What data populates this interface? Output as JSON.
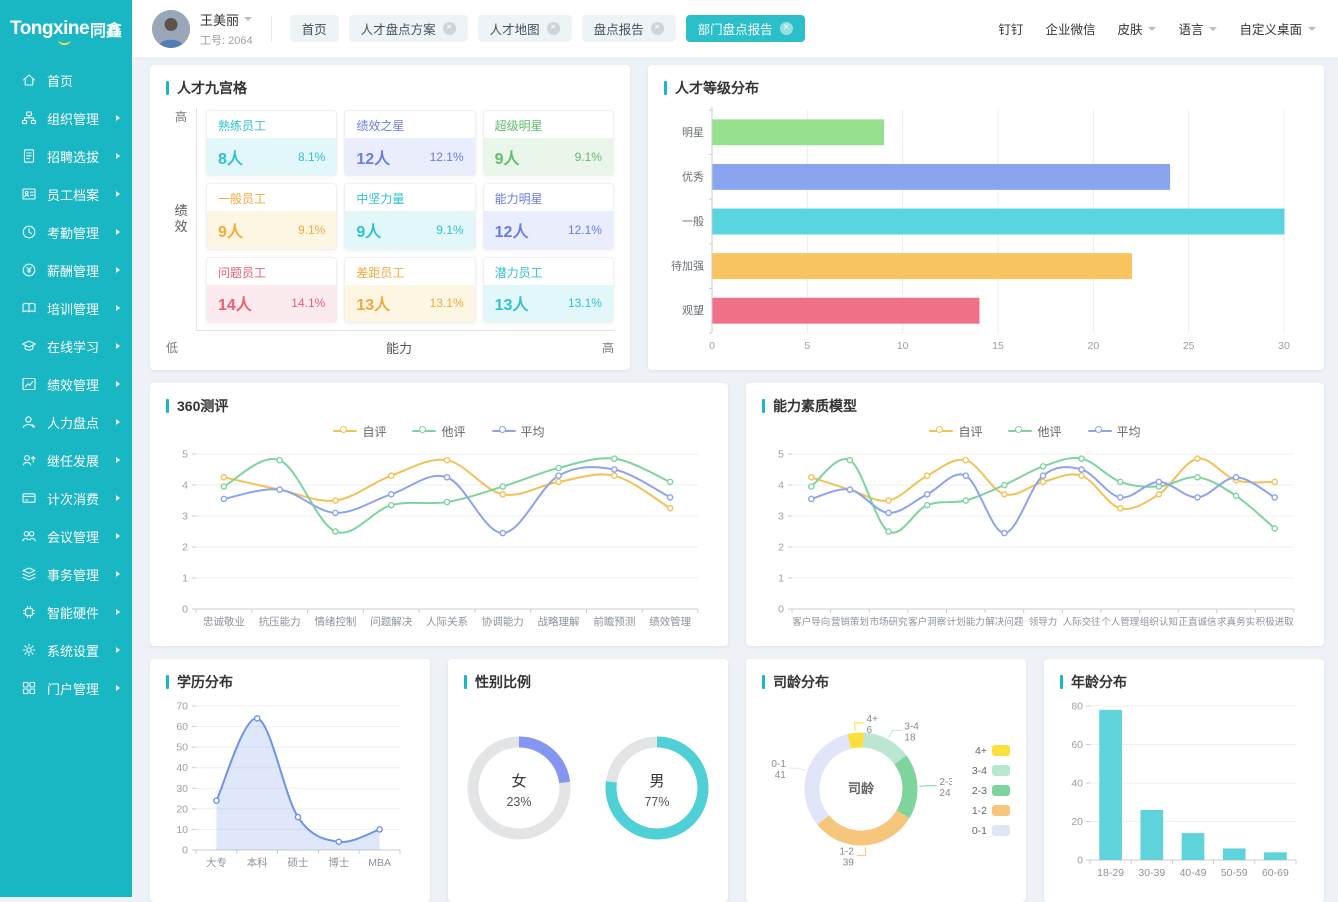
{
  "brand": {
    "logo_primary": "Tongxine",
    "logo_secondary": "同鑫",
    "color": "#19b6c4"
  },
  "sidebar": {
    "items": [
      {
        "label": "首页",
        "icon": "home-icon",
        "has_arrow": false
      },
      {
        "label": "组织管理",
        "icon": "org-icon",
        "has_arrow": true
      },
      {
        "label": "招聘选拔",
        "icon": "recruit-icon",
        "has_arrow": true
      },
      {
        "label": "员工档案",
        "icon": "archive-icon",
        "has_arrow": true
      },
      {
        "label": "考勤管理",
        "icon": "attendance-icon",
        "has_arrow": true
      },
      {
        "label": "薪酬管理",
        "icon": "salary-icon",
        "has_arrow": true
      },
      {
        "label": "培训管理",
        "icon": "training-icon",
        "has_arrow": true
      },
      {
        "label": "在线学习",
        "icon": "study-icon",
        "has_arrow": true
      },
      {
        "label": "绩效管理",
        "icon": "performance-icon",
        "has_arrow": true
      },
      {
        "label": "人力盘点",
        "icon": "review-icon",
        "has_arrow": true
      },
      {
        "label": "继任发展",
        "icon": "succession-icon",
        "has_arrow": true
      },
      {
        "label": "计次消费",
        "icon": "consume-icon",
        "has_arrow": true
      },
      {
        "label": "会议管理",
        "icon": "meeting-icon",
        "has_arrow": true
      },
      {
        "label": "事务管理",
        "icon": "affairs-icon",
        "has_arrow": true
      },
      {
        "label": "智能硬件",
        "icon": "hardware-icon",
        "has_arrow": true
      },
      {
        "label": "系统设置",
        "icon": "settings-icon",
        "has_arrow": true
      },
      {
        "label": "门户管理",
        "icon": "portal-icon",
        "has_arrow": true
      }
    ]
  },
  "header": {
    "user": {
      "name": "王美丽",
      "employee_no": "工号: 2064"
    },
    "tabs": [
      {
        "key": "home",
        "label": "首页",
        "closable": false,
        "active": false
      },
      {
        "key": "talent-review-plan",
        "label": "人才盘点方案",
        "closable": true,
        "active": false
      },
      {
        "key": "talent-map",
        "label": "人才地图",
        "closable": true,
        "active": false
      },
      {
        "key": "review-report",
        "label": "盘点报告",
        "closable": true,
        "active": false
      },
      {
        "key": "dept-review-report",
        "label": "部门盘点报告",
        "closable": true,
        "active": true
      }
    ],
    "links": [
      {
        "key": "dingtalk",
        "label": "钉钉",
        "dropdown": false
      },
      {
        "key": "wecom",
        "label": "企业微信",
        "dropdown": false
      },
      {
        "key": "skin",
        "label": "皮肤",
        "dropdown": true
      },
      {
        "key": "language",
        "label": "语言",
        "dropdown": true
      },
      {
        "key": "custom-desktop",
        "label": "自定义桌面",
        "dropdown": true
      }
    ]
  },
  "nine_grid": {
    "title": "人才九宫格",
    "y_axis": {
      "top": "高",
      "label": "绩效",
      "bottom": "低"
    },
    "x_axis": {
      "label": "能力",
      "right": "高"
    },
    "themes": {
      "teal": {
        "text": "#2fc2ce",
        "bg": "#e2f7fa"
      },
      "blue": {
        "text": "#6b7ce8",
        "bg": "#e9edfc"
      },
      "green": {
        "text": "#61bd6d",
        "bg": "#eaf6ea"
      },
      "orange": {
        "text": "#f6a83a",
        "bg": "#fdf6e3"
      },
      "red": {
        "text": "#ee5d72",
        "bg": "#fcebee"
      }
    },
    "cells": [
      {
        "label": "熟练员工",
        "count": "8人",
        "percent": "8.1%",
        "theme": "teal"
      },
      {
        "label": "绩效之星",
        "count": "12人",
        "percent": "12.1%",
        "theme": "blue"
      },
      {
        "label": "超级明星",
        "count": "9人",
        "percent": "9.1%",
        "theme": "green"
      },
      {
        "label": "一般员工",
        "count": "9人",
        "percent": "9.1%",
        "theme": "orange"
      },
      {
        "label": "中坚力量",
        "count": "9人",
        "percent": "9.1%",
        "theme": "teal"
      },
      {
        "label": "能力明星",
        "count": "12人",
        "percent": "12.1%",
        "theme": "blue"
      },
      {
        "label": "问题员工",
        "count": "14人",
        "percent": "14.1%",
        "theme": "red"
      },
      {
        "label": "差距员工",
        "count": "13人",
        "percent": "13.1%",
        "theme": "orange"
      },
      {
        "label": "潜力员工",
        "count": "13人",
        "percent": "13.1%",
        "theme": "teal"
      }
    ]
  },
  "chart_data": [
    {
      "id": "talent_level",
      "type": "bar",
      "orientation": "horizontal",
      "title": "人才等级分布",
      "categories": [
        "明星",
        "优秀",
        "一般",
        "待加强",
        "观望"
      ],
      "values": [
        9,
        24,
        30,
        22,
        14
      ],
      "colors": [
        "#97e08e",
        "#8ba4f0",
        "#58d5dd",
        "#f9c45f",
        "#f0708a"
      ],
      "xlim": [
        0,
        30
      ],
      "xticks": [
        0,
        5,
        10,
        15,
        20,
        25,
        30
      ],
      "grid": true
    },
    {
      "id": "eval360",
      "type": "line",
      "title": "360测评",
      "categories": [
        "忠诚敬业",
        "抗压能力",
        "情绪控制",
        "问题解决",
        "人际关系",
        "协调能力",
        "战略理解",
        "前瞻预测",
        "绩效管理"
      ],
      "series": [
        {
          "name": "自评",
          "color": "#f3c257",
          "values": [
            4.25,
            3.85,
            3.5,
            4.3,
            4.8,
            3.7,
            4.1,
            4.3,
            3.25
          ]
        },
        {
          "name": "他评",
          "color": "#7fd49d",
          "values": [
            3.95,
            4.8,
            2.5,
            3.35,
            3.45,
            3.95,
            4.55,
            4.85,
            4.1
          ]
        },
        {
          "name": "平均",
          "color": "#8da4ec",
          "values": [
            3.55,
            3.85,
            3.1,
            3.7,
            4.25,
            2.45,
            4.3,
            4.5,
            3.6
          ]
        }
      ],
      "ylim": [
        0,
        5
      ],
      "yticks": [
        0,
        1,
        2,
        3,
        4,
        5
      ],
      "legend_position": "top",
      "tick_font": 10.5,
      "grid": true
    },
    {
      "id": "competency",
      "type": "line",
      "title": "能力素质模型",
      "categories": [
        "客户导向",
        "营销策划",
        "市场研究",
        "客户洞察",
        "计划能力",
        "解决问题",
        "领导力",
        "人际交往",
        "个人管理",
        "组织认知",
        "正直诚信",
        "求真务实",
        "积极进取"
      ],
      "series": [
        {
          "name": "自评",
          "color": "#f3c257",
          "values": [
            4.25,
            3.85,
            3.5,
            4.3,
            4.8,
            3.7,
            4.1,
            4.3,
            3.25,
            3.7,
            4.85,
            4.15,
            4.1
          ]
        },
        {
          "name": "他评",
          "color": "#7fd49d",
          "values": [
            3.95,
            4.8,
            2.5,
            3.35,
            3.5,
            4.0,
            4.6,
            4.85,
            4.1,
            3.95,
            4.25,
            3.65,
            2.6
          ]
        },
        {
          "name": "平均",
          "color": "#8da4ec",
          "values": [
            3.55,
            3.85,
            3.1,
            3.7,
            4.3,
            2.45,
            4.3,
            4.5,
            3.6,
            4.1,
            3.6,
            4.25,
            3.6
          ]
        }
      ],
      "ylim": [
        0,
        5
      ],
      "yticks": [
        0,
        1,
        2,
        3,
        4,
        5
      ],
      "legend_position": "top",
      "tick_font": 9.5,
      "grid": true
    },
    {
      "id": "education",
      "type": "area",
      "title": "学历分布",
      "categories": [
        "大专",
        "本科",
        "硕士",
        "博士",
        "MBA"
      ],
      "values": [
        24,
        64,
        16,
        4,
        10
      ],
      "color": "#6f93e8",
      "fill_opacity": 0.22,
      "ylim": [
        0,
        70
      ],
      "yticks": [
        0,
        10,
        20,
        30,
        40,
        50,
        60,
        70
      ],
      "grid": false
    },
    {
      "id": "gender",
      "type": "pie",
      "title": "性别比例",
      "style": "ring",
      "track_color": "#e3e4e6",
      "slices": [
        {
          "label": "女",
          "percent": 23,
          "color": "#8495f2"
        },
        {
          "label": "男",
          "percent": 77,
          "color": "#4ed0d6"
        }
      ]
    },
    {
      "id": "tenure",
      "type": "pie",
      "title": "司龄分布",
      "style": "donut",
      "center_label": "司龄",
      "start_angle_deg": -14,
      "slices": [
        {
          "label": "4+",
          "value": 6,
          "color": "#fbdf3c",
          "label_side": "right"
        },
        {
          "label": "3-4",
          "value": 18,
          "color": "#bce6d2",
          "label_side": "right"
        },
        {
          "label": "2-3",
          "value": 24,
          "color": "#7fd39c",
          "label_side": "right"
        },
        {
          "label": "1-2",
          "value": 39,
          "color": "#f6c67c",
          "label_side": "left"
        },
        {
          "label": "0-1",
          "value": 41,
          "color": "#e2e4f8",
          "label_side": "left"
        }
      ]
    },
    {
      "id": "age",
      "type": "bar",
      "orientation": "vertical",
      "title": "年龄分布",
      "categories": [
        "18-29",
        "30-39",
        "40-49",
        "50-59",
        "60-69"
      ],
      "values": [
        78,
        26,
        14,
        6,
        4
      ],
      "color": "#5fd3da",
      "ylim": [
        0,
        80
      ],
      "yticks": [
        0,
        20,
        40,
        60,
        80
      ],
      "grid": false
    }
  ]
}
